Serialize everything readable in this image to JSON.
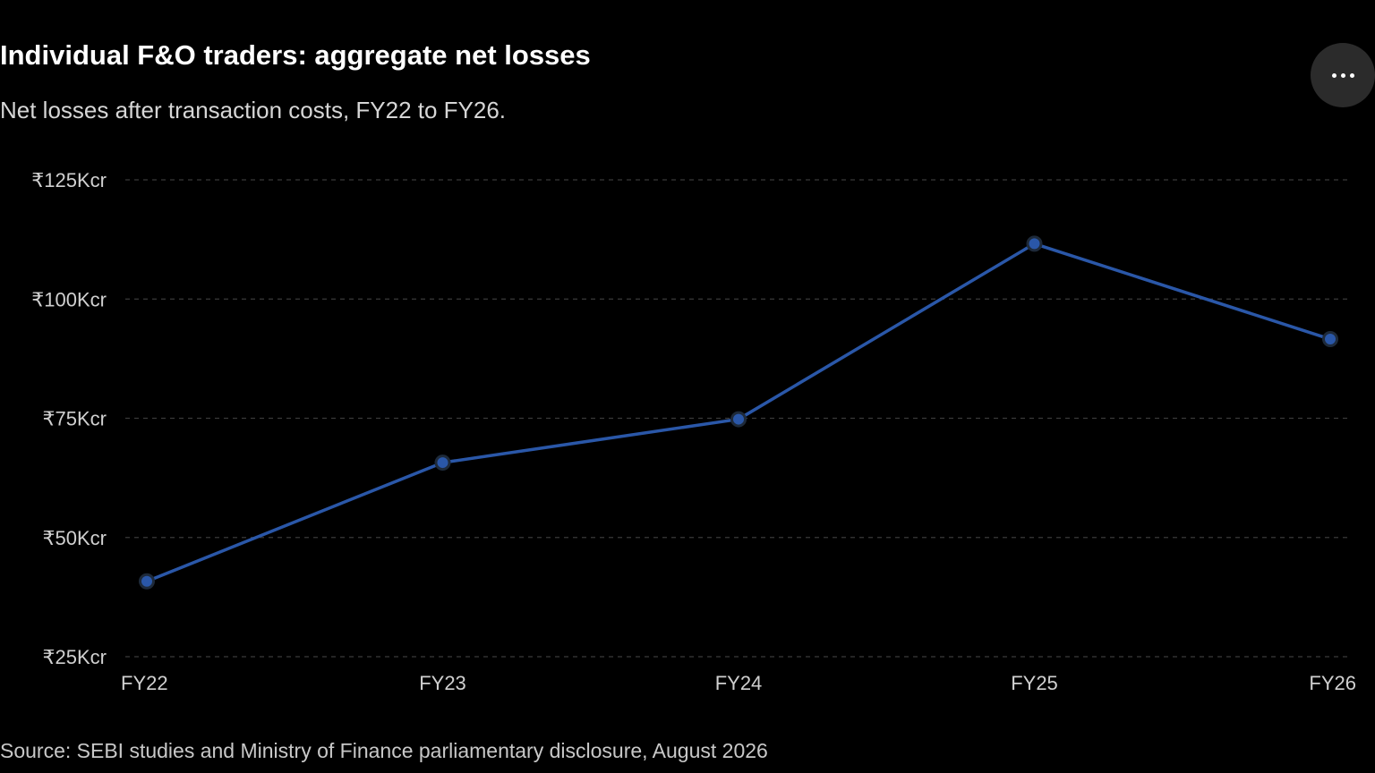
{
  "header": {
    "title": "Individual F&O traders: aggregate net losses",
    "subtitle": "Net losses after transaction costs, FY22 to FY26."
  },
  "menu": {
    "icon": "more-horizontal-icon"
  },
  "footer": {
    "source": "Source: SEBI studies and Ministry of Finance parliamentary disclosure, August 2026"
  },
  "chart_data": {
    "type": "line",
    "title": "Individual F&O traders: aggregate net losses",
    "subtitle": "Net losses after transaction costs, FY22 to FY26.",
    "categories": [
      "FY22",
      "FY23",
      "FY24",
      "FY25",
      "FY26"
    ],
    "series": [
      {
        "values": [
          40.8,
          65.7,
          74.8,
          111.6,
          91.6
        ],
        "color": "#2a57a8"
      }
    ],
    "ylim": [
      25,
      125
    ],
    "yticks": [
      25,
      50,
      75,
      100,
      125
    ],
    "ytick_labels": [
      "₹25Kcr",
      "₹50Kcr",
      "₹75Kcr",
      "₹100Kcr",
      "₹125Kcr"
    ],
    "grid": "horizontal-dashed",
    "legend": "none",
    "colors": {
      "line": "#2a57a8",
      "marker_fill": "#2a57a8",
      "marker_stroke": "#1e2a3a",
      "grid": "#3a3a3a",
      "tick_text": "#d0d0d0"
    }
  }
}
